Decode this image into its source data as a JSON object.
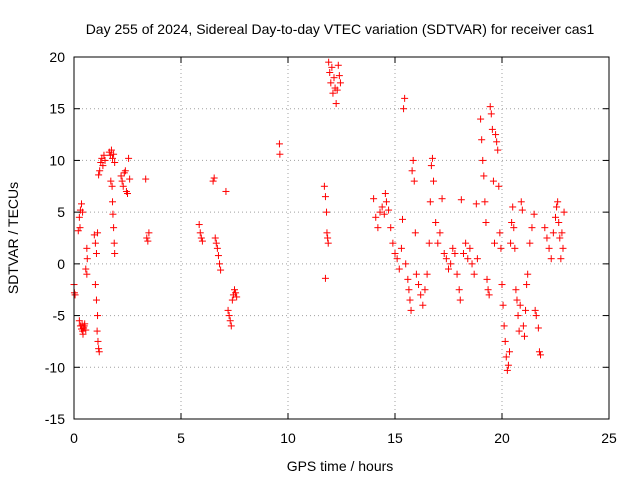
{
  "chart_data": {
    "type": "scatter",
    "title": "Day 255 of 2024, Sidereal Day-to-day VTEC variation (SDTVAR) for receiver cas1",
    "xlabel": "GPS time / hours",
    "ylabel": "SDTVAR / TECUs",
    "xlim": [
      0,
      25
    ],
    "ylim": [
      -15,
      20
    ],
    "xticks": [
      "0",
      "5",
      "10",
      "15",
      "20",
      "25"
    ],
    "yticks": [
      "-15",
      "-10",
      "-5",
      "0",
      "5",
      "10",
      "15",
      "20"
    ],
    "grid": true,
    "marker": "+",
    "color": "#ff0000",
    "points": [
      [
        0.0,
        -2.0
      ],
      [
        0.02,
        -2.8
      ],
      [
        0.05,
        -3.0
      ],
      [
        0.2,
        3.2
      ],
      [
        0.25,
        4.5
      ],
      [
        0.3,
        5.2
      ],
      [
        0.35,
        5.8
      ],
      [
        0.4,
        5.0
      ],
      [
        0.28,
        3.5
      ],
      [
        0.25,
        -5.5
      ],
      [
        0.3,
        -6.0
      ],
      [
        0.35,
        -6.3
      ],
      [
        0.4,
        -6.5
      ],
      [
        0.45,
        -6.2
      ],
      [
        0.5,
        -5.8
      ],
      [
        0.38,
        -5.9
      ],
      [
        0.42,
        -6.8
      ],
      [
        0.48,
        -6.0
      ],
      [
        0.55,
        -6.4
      ],
      [
        0.55,
        -0.5
      ],
      [
        0.6,
        -1.0
      ],
      [
        0.62,
        0.5
      ],
      [
        0.6,
        1.5
      ],
      [
        0.95,
        2.8
      ],
      [
        1.0,
        2.0
      ],
      [
        1.05,
        1.0
      ],
      [
        1.1,
        3.0
      ],
      [
        1.0,
        -2.0
      ],
      [
        1.05,
        -3.5
      ],
      [
        1.1,
        -5.0
      ],
      [
        1.08,
        -6.5
      ],
      [
        1.12,
        -7.5
      ],
      [
        1.15,
        -8.2
      ],
      [
        1.18,
        -8.5
      ],
      [
        1.15,
        8.6
      ],
      [
        1.2,
        9.0
      ],
      [
        1.25,
        9.8
      ],
      [
        1.3,
        10.2
      ],
      [
        1.35,
        9.5
      ],
      [
        1.4,
        10.5
      ],
      [
        1.45,
        10.0
      ],
      [
        1.65,
        10.8
      ],
      [
        1.7,
        10.5
      ],
      [
        1.75,
        11.0
      ],
      [
        1.8,
        10.2
      ],
      [
        1.85,
        10.6
      ],
      [
        1.9,
        9.8
      ],
      [
        1.72,
        8.0
      ],
      [
        1.78,
        7.5
      ],
      [
        1.8,
        6.0
      ],
      [
        1.82,
        4.8
      ],
      [
        1.85,
        3.5
      ],
      [
        1.88,
        2.0
      ],
      [
        1.9,
        1.0
      ],
      [
        2.2,
        8.5
      ],
      [
        2.25,
        8.0
      ],
      [
        2.3,
        7.5
      ],
      [
        2.35,
        8.8
      ],
      [
        2.4,
        9.0
      ],
      [
        2.45,
        7.0
      ],
      [
        2.5,
        6.8
      ],
      [
        2.55,
        10.2
      ],
      [
        2.6,
        8.2
      ],
      [
        3.35,
        8.2
      ],
      [
        3.4,
        2.5
      ],
      [
        3.5,
        3.0
      ],
      [
        3.45,
        2.2
      ],
      [
        5.85,
        3.8
      ],
      [
        5.9,
        3.0
      ],
      [
        5.95,
        2.5
      ],
      [
        6.0,
        2.2
      ],
      [
        6.5,
        8.0
      ],
      [
        6.55,
        8.3
      ],
      [
        6.6,
        2.5
      ],
      [
        6.65,
        2.0
      ],
      [
        6.7,
        1.5
      ],
      [
        6.75,
        0.8
      ],
      [
        6.8,
        0.0
      ],
      [
        6.85,
        -0.6
      ],
      [
        7.1,
        7.0
      ],
      [
        7.2,
        -4.5
      ],
      [
        7.25,
        -5.0
      ],
      [
        7.3,
        -5.5
      ],
      [
        7.35,
        -6.0
      ],
      [
        7.4,
        -3.5
      ],
      [
        7.45,
        -3.0
      ],
      [
        7.5,
        -2.5
      ],
      [
        7.55,
        -2.8
      ],
      [
        7.6,
        -3.2
      ],
      [
        9.6,
        11.6
      ],
      [
        9.62,
        10.6
      ],
      [
        11.7,
        7.5
      ],
      [
        11.75,
        6.5
      ],
      [
        11.8,
        5.0
      ],
      [
        11.82,
        3.0
      ],
      [
        11.85,
        2.5
      ],
      [
        11.88,
        2.0
      ],
      [
        11.75,
        -1.4
      ],
      [
        11.9,
        19.5
      ],
      [
        11.95,
        18.5
      ],
      [
        12.0,
        17.5
      ],
      [
        12.05,
        19.0
      ],
      [
        12.1,
        16.5
      ],
      [
        12.15,
        18.0
      ],
      [
        12.2,
        17.0
      ],
      [
        12.25,
        15.5
      ],
      [
        12.3,
        16.8
      ],
      [
        12.35,
        19.2
      ],
      [
        12.4,
        18.2
      ],
      [
        12.45,
        17.5
      ],
      [
        14.0,
        6.3
      ],
      [
        14.1,
        4.5
      ],
      [
        14.2,
        3.5
      ],
      [
        14.3,
        5.0
      ],
      [
        14.4,
        5.5
      ],
      [
        14.5,
        4.8
      ],
      [
        14.55,
        6.8
      ],
      [
        14.6,
        6.0
      ],
      [
        14.7,
        5.2
      ],
      [
        14.8,
        3.5
      ],
      [
        14.9,
        2.0
      ],
      [
        15.0,
        1.0
      ],
      [
        15.1,
        0.5
      ],
      [
        15.2,
        -0.5
      ],
      [
        15.3,
        1.5
      ],
      [
        15.35,
        4.3
      ],
      [
        15.4,
        15.0
      ],
      [
        15.45,
        16.0
      ],
      [
        15.5,
        0.0
      ],
      [
        15.6,
        -1.5
      ],
      [
        15.65,
        -2.5
      ],
      [
        15.7,
        -3.5
      ],
      [
        15.75,
        -4.5
      ],
      [
        15.8,
        9.0
      ],
      [
        15.85,
        10.0
      ],
      [
        15.9,
        8.0
      ],
      [
        15.95,
        3.0
      ],
      [
        16.0,
        -1.0
      ],
      [
        16.1,
        -2.0
      ],
      [
        16.2,
        -3.0
      ],
      [
        16.3,
        -4.0
      ],
      [
        16.4,
        -2.5
      ],
      [
        16.5,
        -1.0
      ],
      [
        16.6,
        2.0
      ],
      [
        16.65,
        6.0
      ],
      [
        16.7,
        9.5
      ],
      [
        16.75,
        10.2
      ],
      [
        16.8,
        8.0
      ],
      [
        16.9,
        4.0
      ],
      [
        17.0,
        2.0
      ],
      [
        17.1,
        3.0
      ],
      [
        17.2,
        6.3
      ],
      [
        17.3,
        1.0
      ],
      [
        17.4,
        0.5
      ],
      [
        17.5,
        -0.5
      ],
      [
        17.6,
        0.0
      ],
      [
        17.7,
        1.5
      ],
      [
        17.8,
        1.0
      ],
      [
        17.9,
        -1.0
      ],
      [
        18.0,
        -2.5
      ],
      [
        18.05,
        -3.5
      ],
      [
        18.1,
        6.2
      ],
      [
        18.2,
        1.0
      ],
      [
        18.3,
        2.0
      ],
      [
        18.4,
        0.5
      ],
      [
        18.5,
        1.5
      ],
      [
        18.6,
        0.0
      ],
      [
        18.7,
        -1.0
      ],
      [
        18.8,
        5.8
      ],
      [
        18.85,
        0.5
      ],
      [
        19.0,
        14.0
      ],
      [
        19.05,
        12.0
      ],
      [
        19.1,
        10.0
      ],
      [
        19.15,
        8.5
      ],
      [
        19.2,
        6.0
      ],
      [
        19.25,
        4.0
      ],
      [
        19.3,
        -1.5
      ],
      [
        19.35,
        -2.5
      ],
      [
        19.4,
        -3.0
      ],
      [
        19.45,
        15.2
      ],
      [
        19.5,
        14.5
      ],
      [
        19.55,
        13.0
      ],
      [
        19.6,
        8.0
      ],
      [
        19.65,
        2.0
      ],
      [
        19.7,
        12.5
      ],
      [
        19.75,
        11.8
      ],
      [
        19.8,
        11.0
      ],
      [
        19.85,
        7.5
      ],
      [
        19.9,
        3.0
      ],
      [
        19.95,
        1.5
      ],
      [
        20.0,
        -2.0
      ],
      [
        20.05,
        -4.0
      ],
      [
        20.1,
        -6.0
      ],
      [
        20.15,
        -7.5
      ],
      [
        20.2,
        -9.0
      ],
      [
        20.25,
        -10.3
      ],
      [
        20.3,
        -9.8
      ],
      [
        20.35,
        -8.5
      ],
      [
        20.4,
        2.0
      ],
      [
        20.45,
        4.0
      ],
      [
        20.5,
        5.5
      ],
      [
        20.55,
        3.5
      ],
      [
        20.6,
        1.5
      ],
      [
        20.65,
        -2.5
      ],
      [
        20.7,
        -3.5
      ],
      [
        20.75,
        -5.0
      ],
      [
        20.8,
        -6.5
      ],
      [
        20.85,
        -4.0
      ],
      [
        20.9,
        6.0
      ],
      [
        20.95,
        5.2
      ],
      [
        21.0,
        -6.0
      ],
      [
        21.05,
        -7.0
      ],
      [
        21.1,
        -4.5
      ],
      [
        21.15,
        -2.0
      ],
      [
        21.2,
        -1.0
      ],
      [
        21.3,
        2.0
      ],
      [
        21.4,
        3.5
      ],
      [
        21.5,
        4.8
      ],
      [
        21.55,
        -4.5
      ],
      [
        21.6,
        -5.0
      ],
      [
        21.7,
        -6.2
      ],
      [
        21.75,
        -8.5
      ],
      [
        21.8,
        -8.8
      ],
      [
        22.0,
        3.5
      ],
      [
        22.1,
        2.5
      ],
      [
        22.2,
        1.5
      ],
      [
        22.3,
        0.5
      ],
      [
        22.4,
        3.0
      ],
      [
        22.5,
        4.5
      ],
      [
        22.55,
        5.5
      ],
      [
        22.6,
        6.0
      ],
      [
        22.65,
        4.0
      ],
      [
        22.7,
        2.5
      ],
      [
        22.75,
        0.5
      ],
      [
        22.8,
        3.0
      ],
      [
        22.85,
        1.5
      ],
      [
        22.9,
        5.0
      ]
    ]
  }
}
